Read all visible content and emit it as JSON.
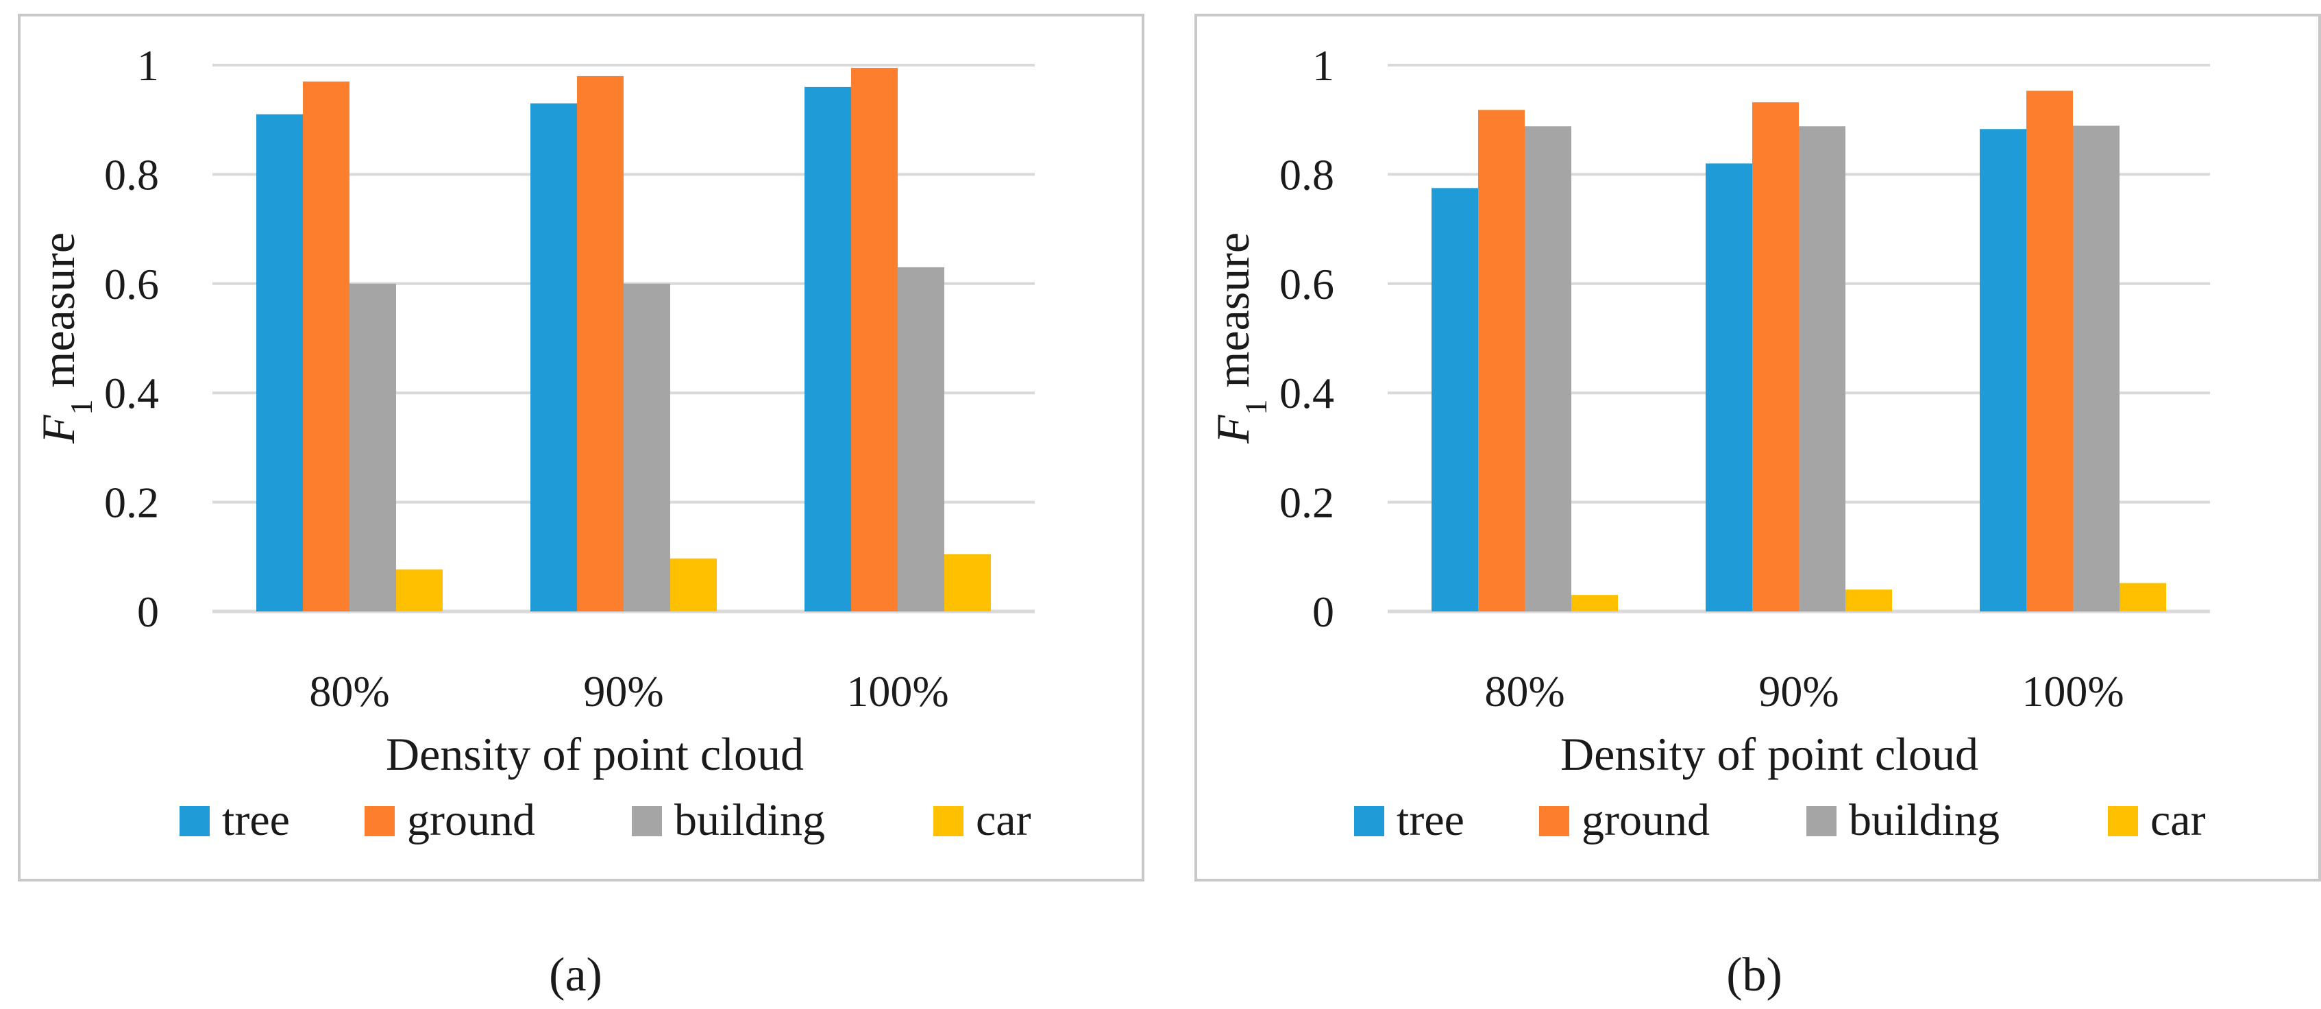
{
  "chart_data": [
    {
      "type": "bar",
      "panel_label": "(a)",
      "title": "",
      "xlabel": "Density of point cloud",
      "ylabel_main": "F",
      "ylabel_sub": "1",
      "ylabel_rest": " measure",
      "ylim": [
        0,
        1
      ],
      "yticks": [
        "0",
        "0.2",
        "0.4",
        "0.6",
        "0.8",
        "1"
      ],
      "grid": true,
      "legend_position": "bottom",
      "categories": [
        "80%",
        "90%",
        "100%"
      ],
      "series": [
        {
          "name": "tree",
          "color": "#1f9bd8",
          "values": [
            0.91,
            0.93,
            0.96
          ]
        },
        {
          "name": "ground",
          "color": "#fd7e2c",
          "values": [
            0.97,
            0.98,
            0.995
          ]
        },
        {
          "name": "building",
          "color": "#a5a5a5",
          "values": [
            0.6,
            0.6,
            0.63
          ]
        },
        {
          "name": "car",
          "color": "#ffc000",
          "values": [
            0.077,
            0.097,
            0.105
          ]
        }
      ]
    },
    {
      "type": "bar",
      "panel_label": "(b)",
      "title": "",
      "xlabel": "Density of point cloud",
      "ylabel_main": "F",
      "ylabel_sub": "1",
      "ylabel_rest": " measure",
      "ylim": [
        0,
        1
      ],
      "yticks": [
        "0",
        "0.2",
        "0.4",
        "0.6",
        "0.8",
        "1"
      ],
      "grid": true,
      "legend_position": "bottom",
      "categories": [
        "80%",
        "90%",
        "100%"
      ],
      "series": [
        {
          "name": "tree",
          "color": "#1f9bd8",
          "values": [
            0.775,
            0.82,
            0.883
          ]
        },
        {
          "name": "ground",
          "color": "#fd7e2c",
          "values": [
            0.918,
            0.932,
            0.953
          ]
        },
        {
          "name": "building",
          "color": "#a5a5a5",
          "values": [
            0.888,
            0.888,
            0.889
          ]
        },
        {
          "name": "car",
          "color": "#ffc000",
          "values": [
            0.03,
            0.04,
            0.052
          ]
        }
      ]
    }
  ],
  "colors": {
    "grid": "#d9d9d9",
    "frame": "#c8c8c8",
    "text": "#1a1a1a"
  }
}
